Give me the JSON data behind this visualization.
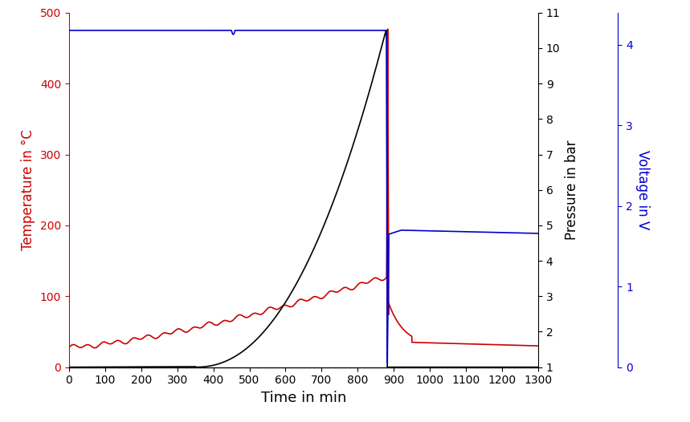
{
  "title": "",
  "xlabel": "Time in min",
  "ylabel_left": "Temperature in °C",
  "ylabel_middle": "Pressure in bar",
  "ylabel_right": "Voltage in V",
  "xlim": [
    0,
    1300
  ],
  "ylim_temp": [
    0,
    500
  ],
  "ylim_pressure": [
    1,
    11
  ],
  "ylim_voltage": [
    0,
    4.4
  ],
  "temp_color": "#cc0000",
  "pressure_color": "#000000",
  "voltage_color": "#0000cc",
  "xlabel_fontsize": 13,
  "ylabel_fontsize": 12,
  "tick_fontsize": 10,
  "xticks": [
    0,
    100,
    200,
    300,
    400,
    500,
    600,
    700,
    800,
    900,
    1000,
    1100,
    1200,
    1300
  ],
  "yticks_temp": [
    0,
    100,
    200,
    300,
    400,
    500
  ],
  "yticks_pressure": [
    1,
    2,
    3,
    4,
    5,
    6,
    7,
    8,
    9,
    10,
    11
  ],
  "yticks_voltage": [
    0,
    1,
    2,
    3,
    4
  ]
}
